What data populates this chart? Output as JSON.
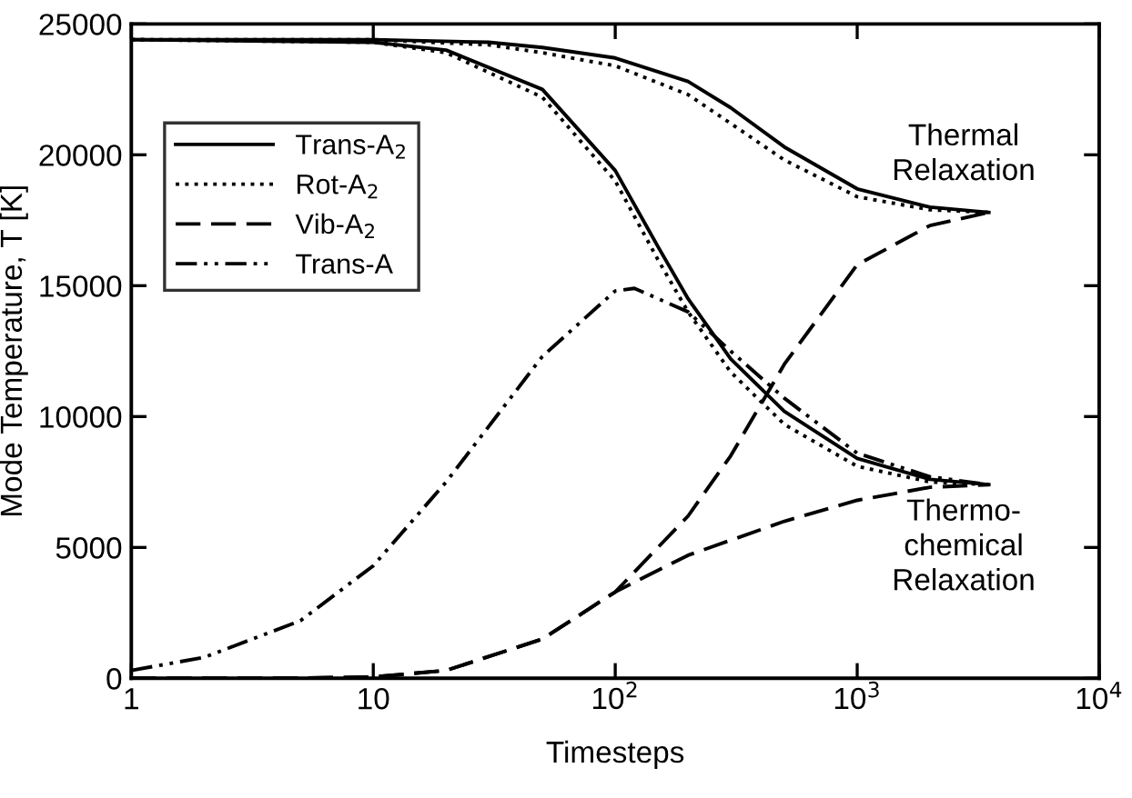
{
  "chart_data": {
    "type": "line",
    "xlabel": "Timesteps",
    "ylabel": "Mode Temperature, T [K]",
    "log": "x",
    "xlim": [
      1,
      10000
    ],
    "xticks": [
      1,
      10,
      {
        "value": 100,
        "label": "10$^{2}$"
      },
      {
        "value": 1000,
        "label": "10$^{3}$"
      },
      {
        "value": 10000,
        "label": "10$^{4}$"
      }
    ],
    "ylim": [
      0,
      25000
    ],
    "yticks": [
      0,
      5000,
      10000,
      15000,
      20000,
      25000
    ],
    "grid": false,
    "legend": "top left",
    "marker": "none",
    "series": [
      {
        "name": "Trans-A$_{2}$",
        "color": "#000000",
        "line_style": "solid",
        "x": [
          1,
          10,
          20,
          50,
          100,
          150,
          200,
          300,
          500,
          1000,
          2000,
          3500
        ],
        "values": [
          24400,
          24300,
          24000,
          22500,
          19400,
          16500,
          14500,
          12200,
          10200,
          8400,
          7600,
          7400
        ]
      },
      {
        "name": "Rot-A$_{2}$",
        "color": "#000000",
        "line_style": "dotted",
        "x": [
          1,
          10,
          20,
          50,
          100,
          150,
          200,
          300,
          500,
          1000,
          2000,
          3500
        ],
        "values": [
          24400,
          24300,
          23900,
          22200,
          19000,
          16000,
          14000,
          11700,
          9700,
          8100,
          7500,
          7400
        ]
      },
      {
        "name": "Vib-A$_{2}$",
        "color": "#000000",
        "line_style": "dashed",
        "x": [
          1,
          5,
          10,
          20,
          50,
          100,
          200,
          500,
          1000,
          2000,
          3500
        ],
        "values": [
          0,
          10,
          50,
          300,
          1500,
          3300,
          4700,
          6000,
          6800,
          7300,
          7400
        ]
      },
      {
        "name": "Trans-A",
        "color": "#000000",
        "line_style": "dashdot",
        "x": [
          1,
          2,
          5,
          10,
          20,
          50,
          100,
          120,
          200,
          300,
          500,
          1000,
          2000,
          3500
        ],
        "values": [
          300,
          800,
          2200,
          4300,
          7500,
          12300,
          14800,
          14900,
          14000,
          12500,
          10700,
          8600,
          7700,
          7400
        ]
      },
      {
        "color": "#000000",
        "line_style": "solid",
        "x": [
          1,
          10,
          30,
          50,
          100,
          200,
          300,
          500,
          1000,
          2000,
          3500
        ],
        "values": [
          24400,
          24400,
          24300,
          24100,
          23700,
          22800,
          21800,
          20300,
          18700,
          18000,
          17800
        ]
      },
      {
        "color": "#000000",
        "line_style": "dotted",
        "x": [
          1,
          10,
          30,
          50,
          100,
          200,
          300,
          500,
          1000,
          2000,
          3500
        ],
        "values": [
          24400,
          24400,
          24200,
          23900,
          23400,
          22300,
          21200,
          19800,
          18400,
          17900,
          17800
        ]
      },
      {
        "color": "#000000",
        "line_style": "dashed",
        "x": [
          1,
          5,
          10,
          20,
          50,
          100,
          200,
          300,
          500,
          1000,
          2000,
          3500
        ],
        "values": [
          0,
          10,
          50,
          300,
          1500,
          3300,
          6200,
          8500,
          12000,
          15800,
          17300,
          17800
        ]
      }
    ],
    "annotations": [
      "Thermal\nRelaxation",
      "Thermo-\nchemical\nRelaxation"
    ]
  }
}
